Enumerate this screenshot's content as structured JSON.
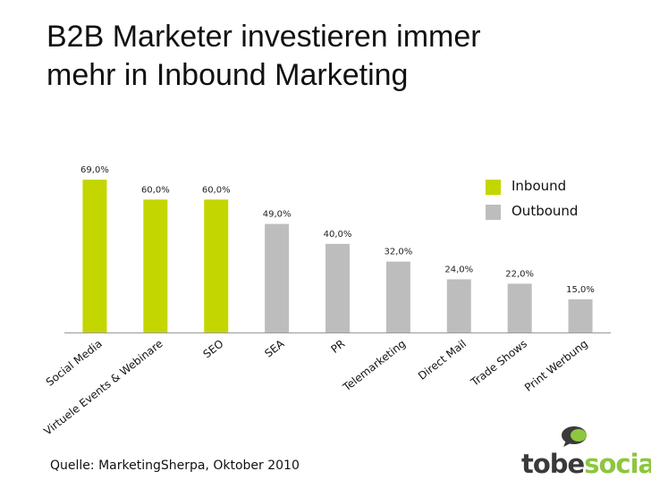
{
  "title_lines": [
    "B2B Marketer investieren immer",
    "mehr in Inbound Marketing"
  ],
  "source": "Quelle: MarketingSherpa, Oktober 2010",
  "logo": {
    "part1": "tobe",
    "part2": "social",
    "icon": "speech-bubble-logo-icon"
  },
  "colors": {
    "inbound": "#c4d600",
    "outbound": "#bdbdbd"
  },
  "chart_data": {
    "type": "bar",
    "categories": [
      "Social Media",
      "Virtuele Events & Webinare",
      "SEO",
      "SEA",
      "PR",
      "Telemarketing",
      "Direct Mail",
      "Trade Shows",
      "Print Werbung"
    ],
    "values": [
      69.0,
      60.0,
      60.0,
      49.0,
      40.0,
      32.0,
      24.0,
      22.0,
      15.0
    ],
    "labels": [
      "69,0%",
      "60,0%",
      "60,0%",
      "49,0%",
      "40,0%",
      "32,0%",
      "24,0%",
      "22,0%",
      "15,0%"
    ],
    "groups": [
      "Inbound",
      "Inbound",
      "Inbound",
      "Outbound",
      "Outbound",
      "Outbound",
      "Outbound",
      "Outbound",
      "Outbound"
    ],
    "legend": [
      {
        "name": "Inbound",
        "color": "#c4d600"
      },
      {
        "name": "Outbound",
        "color": "#bdbdbd"
      }
    ],
    "legend_position": "top-right",
    "ylim": [
      0,
      70
    ],
    "grid": false
  }
}
